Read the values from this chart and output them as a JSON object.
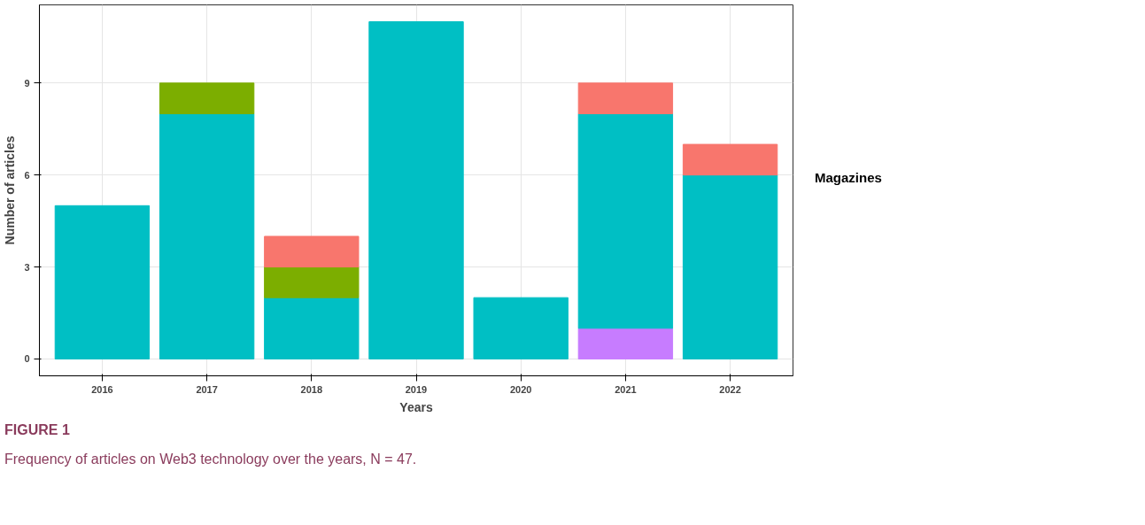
{
  "chart_data": {
    "type": "bar",
    "stacked": true,
    "xlabel": "Years",
    "ylabel": "Number of articles",
    "legend_title": "Magazines",
    "grid": true,
    "categories": [
      "2016",
      "2017",
      "2018",
      "2019",
      "2020",
      "2021",
      "2022"
    ],
    "series": [
      {
        "color": "#c77cff",
        "values": [
          0,
          0,
          0,
          0,
          0,
          1,
          0
        ]
      },
      {
        "color": "#00bfc4",
        "values": [
          5,
          8,
          2,
          11,
          2,
          7,
          6
        ]
      },
      {
        "color": "#7cae00",
        "values": [
          0,
          1,
          1,
          0,
          0,
          0,
          0
        ]
      },
      {
        "color": "#f8766d",
        "values": [
          0,
          0,
          1,
          0,
          0,
          1,
          1
        ]
      }
    ],
    "ylim": [
      -0.55,
      11.55
    ],
    "yticks": [
      0,
      3,
      6,
      9
    ],
    "annotations": [
      "FIGURE 1",
      "Frequency of articles on Web3 technology over the years, N = 47."
    ]
  }
}
